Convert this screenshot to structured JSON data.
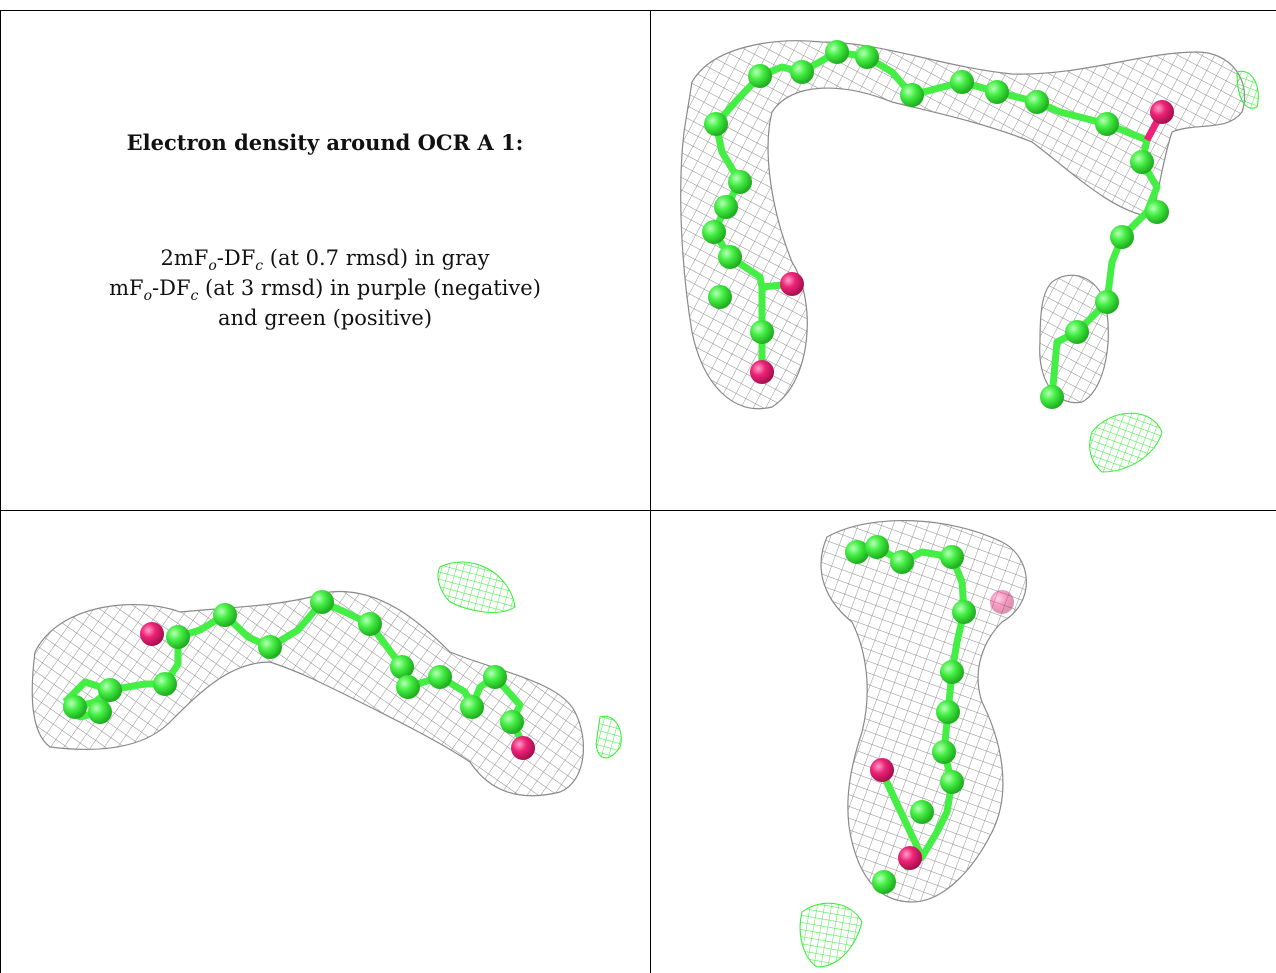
{
  "legend": {
    "title": "Electron density around OCR A 1:",
    "line1": {
      "prefix": "2mF",
      "sub1": "o",
      "mid": "-DF",
      "sub2": "c",
      "suffix": " (at 0.7 rmsd) in gray"
    },
    "line2": {
      "prefix": "mF",
      "sub1": "o",
      "mid": "-DF",
      "sub2": "c",
      "suffix": " (at 3 rmsd) in purple (negative)"
    },
    "line3": "and green (positive)"
  },
  "colors": {
    "mesh_gray": "#8a8a8a",
    "mesh_green": "#33ee33",
    "carbon": "#44ee44",
    "oxygen": "#ee2277",
    "border": "#000000"
  },
  "panels": [
    {
      "name": "view-top-right"
    },
    {
      "name": "view-bottom-left"
    },
    {
      "name": "view-bottom-right"
    }
  ]
}
